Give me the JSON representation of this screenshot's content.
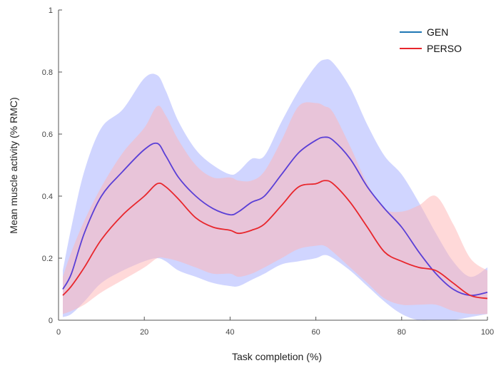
{
  "chart_data": {
    "type": "line",
    "xlabel": "Task completion (%)",
    "ylabel": "Mean muscle activity (% RMC)",
    "xlim": [
      0,
      100
    ],
    "ylim": [
      0,
      1
    ],
    "xticks": [
      "0",
      "20",
      "40",
      "60",
      "80",
      "100"
    ],
    "yticks": [
      "0",
      "0.2",
      "0.4",
      "0.6",
      "0.8",
      "1"
    ],
    "grid": false,
    "legend_position": "top-right",
    "x": [
      1,
      3,
      6,
      10,
      15,
      20,
      23,
      25,
      28,
      32,
      36,
      40,
      42,
      45,
      48,
      52,
      56,
      60,
      62,
      64,
      68,
      72,
      76,
      80,
      84,
      88,
      92,
      96,
      100
    ],
    "series": [
      {
        "name": "GEN",
        "color": "#5a3fd6",
        "band_color": "#aab2ff",
        "values": [
          0.1,
          0.15,
          0.28,
          0.4,
          0.48,
          0.55,
          0.57,
          0.53,
          0.46,
          0.4,
          0.36,
          0.34,
          0.35,
          0.38,
          0.4,
          0.47,
          0.54,
          0.58,
          0.59,
          0.58,
          0.52,
          0.43,
          0.36,
          0.3,
          0.22,
          0.15,
          0.1,
          0.08,
          0.09
        ],
        "upper": [
          0.16,
          0.3,
          0.48,
          0.62,
          0.68,
          0.78,
          0.79,
          0.74,
          0.64,
          0.55,
          0.5,
          0.47,
          0.48,
          0.52,
          0.53,
          0.64,
          0.74,
          0.82,
          0.84,
          0.83,
          0.75,
          0.63,
          0.53,
          0.47,
          0.38,
          0.28,
          0.19,
          0.14,
          0.17
        ],
        "lower": [
          0.01,
          0.02,
          0.06,
          0.12,
          0.16,
          0.19,
          0.2,
          0.19,
          0.16,
          0.14,
          0.12,
          0.11,
          0.11,
          0.13,
          0.15,
          0.18,
          0.19,
          0.2,
          0.21,
          0.2,
          0.16,
          0.11,
          0.06,
          0.02,
          0.0,
          0.0,
          0.0,
          0.01,
          0.02
        ]
      },
      {
        "name": "PERSO",
        "color": "#e8262c",
        "band_color": "#ffb3b3",
        "values": [
          0.08,
          0.11,
          0.17,
          0.26,
          0.34,
          0.4,
          0.44,
          0.43,
          0.39,
          0.33,
          0.3,
          0.29,
          0.28,
          0.29,
          0.31,
          0.37,
          0.43,
          0.44,
          0.45,
          0.44,
          0.38,
          0.3,
          0.22,
          0.19,
          0.17,
          0.16,
          0.12,
          0.08,
          0.07
        ],
        "upper": [
          0.14,
          0.22,
          0.32,
          0.43,
          0.54,
          0.62,
          0.69,
          0.66,
          0.58,
          0.5,
          0.46,
          0.46,
          0.45,
          0.45,
          0.48,
          0.58,
          0.69,
          0.7,
          0.69,
          0.67,
          0.56,
          0.44,
          0.36,
          0.35,
          0.37,
          0.4,
          0.31,
          0.2,
          0.16
        ],
        "lower": [
          0.02,
          0.03,
          0.05,
          0.09,
          0.13,
          0.17,
          0.2,
          0.2,
          0.19,
          0.17,
          0.15,
          0.15,
          0.14,
          0.15,
          0.17,
          0.2,
          0.23,
          0.24,
          0.24,
          0.22,
          0.17,
          0.12,
          0.07,
          0.05,
          0.05,
          0.05,
          0.03,
          0.02,
          0.02
        ]
      }
    ]
  }
}
